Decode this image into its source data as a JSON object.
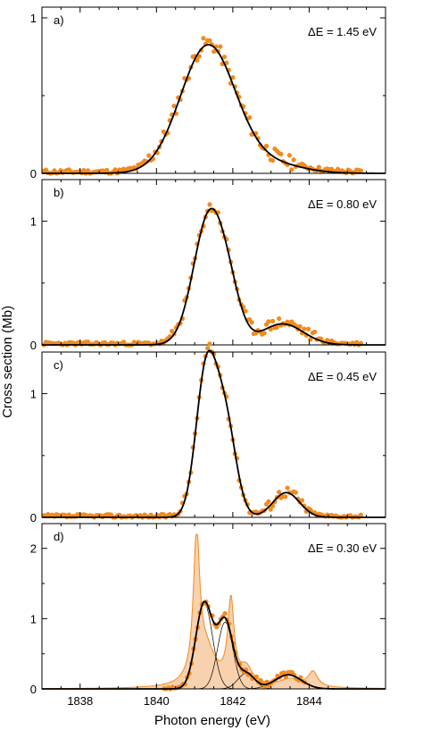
{
  "figure": {
    "xlabel": "Photon energy (eV)",
    "ylabel": "Cross section (Mb)"
  },
  "chart_data": [
    {
      "type": "scatter",
      "panel_label": "a)",
      "resolution_label": "ΔE = 1.45 eV",
      "xlim": [
        1837,
        1846
      ],
      "ylim": [
        0,
        1.0
      ],
      "xticks": [
        1838,
        1840,
        1842,
        1844
      ],
      "yticks": [
        0,
        1
      ],
      "ytick_labels": [
        "0",
        "1"
      ],
      "curve": {
        "amp": 0.82,
        "center": 1841.35,
        "sigma": 0.72,
        "tail_amp": 0.06,
        "tail_center": 1843.0,
        "tail_sigma": 0.8
      },
      "points_seed": 11,
      "colors": {
        "points": "#f28a1e",
        "fit": "#000000"
      }
    },
    {
      "type": "scatter",
      "panel_label": "b)",
      "resolution_label": "ΔE = 0.80 eV",
      "xlim": [
        1837,
        1846
      ],
      "ylim": [
        0,
        1.25
      ],
      "xticks": [
        1838,
        1840,
        1842,
        1844
      ],
      "yticks": [
        0,
        1
      ],
      "ytick_labels": [
        "0",
        "1"
      ],
      "curve": {
        "amp": 1.06,
        "center": 1841.4,
        "sigma": 0.42,
        "tail_amp": 0.17,
        "tail_center": 1843.3,
        "tail_sigma": 0.55,
        "shoulder_amp": 0.22,
        "shoulder_center": 1841.95,
        "shoulder_sigma": 0.3
      },
      "points_seed": 23,
      "colors": {
        "points": "#f28a1e",
        "fit": "#000000"
      }
    },
    {
      "type": "scatter",
      "panel_label": "c)",
      "resolution_label": "ΔE = 0.45 eV",
      "xlim": [
        1837,
        1846
      ],
      "ylim": [
        0,
        1.25
      ],
      "xticks": [
        1838,
        1840,
        1842,
        1844
      ],
      "yticks": [
        0,
        1
      ],
      "ytick_labels": [
        "0",
        "1"
      ],
      "curve": {
        "amp": 1.15,
        "center": 1841.3,
        "sigma": 0.27,
        "tail_amp": 0.2,
        "tail_center": 1843.4,
        "tail_sigma": 0.35,
        "shoulder_amp": 0.85,
        "shoulder_center": 1841.8,
        "shoulder_sigma": 0.28
      },
      "points_seed": 37,
      "colors": {
        "points": "#f28a1e",
        "fit": "#000000"
      }
    },
    {
      "type": "area",
      "panel_label": "d)",
      "resolution_label": "ΔE = 0.30 eV",
      "xlim": [
        1837,
        1846
      ],
      "ylim": [
        0,
        2.2
      ],
      "xticks": [
        1838,
        1840,
        1842,
        1844
      ],
      "xtick_labels": [
        "1838",
        "1840",
        "1842",
        "1844"
      ],
      "yticks": [
        0,
        1,
        2
      ],
      "ytick_labels": [
        "0",
        "1",
        "2"
      ],
      "components": [
        {
          "center": 1841.25,
          "width": 0.22,
          "amp": 1.22
        },
        {
          "center": 1841.8,
          "width": 0.2,
          "amp": 0.95
        },
        {
          "center": 1842.35,
          "width": 0.22,
          "amp": 0.22
        },
        {
          "center": 1843.45,
          "width": 0.35,
          "amp": 0.2
        }
      ],
      "intrinsic": [
        {
          "center": 1841.05,
          "width": 0.1,
          "amp": 2.05
        },
        {
          "center": 1841.3,
          "width": 0.3,
          "amp": 0.5
        },
        {
          "center": 1841.95,
          "width": 0.1,
          "amp": 1.2
        },
        {
          "center": 1842.35,
          "width": 0.2,
          "amp": 0.25
        },
        {
          "center": 1844.1,
          "width": 0.15,
          "amp": 0.22
        },
        {
          "center": 1843.5,
          "width": 0.35,
          "amp": 0.12
        }
      ],
      "points_seed": 53,
      "points_range": [
        1840.2,
        1843.9
      ],
      "colors": {
        "points": "#f28a1e",
        "fit": "#000000",
        "fill": "#f7c9a0",
        "fill_edge": "#f28a1e"
      }
    }
  ]
}
